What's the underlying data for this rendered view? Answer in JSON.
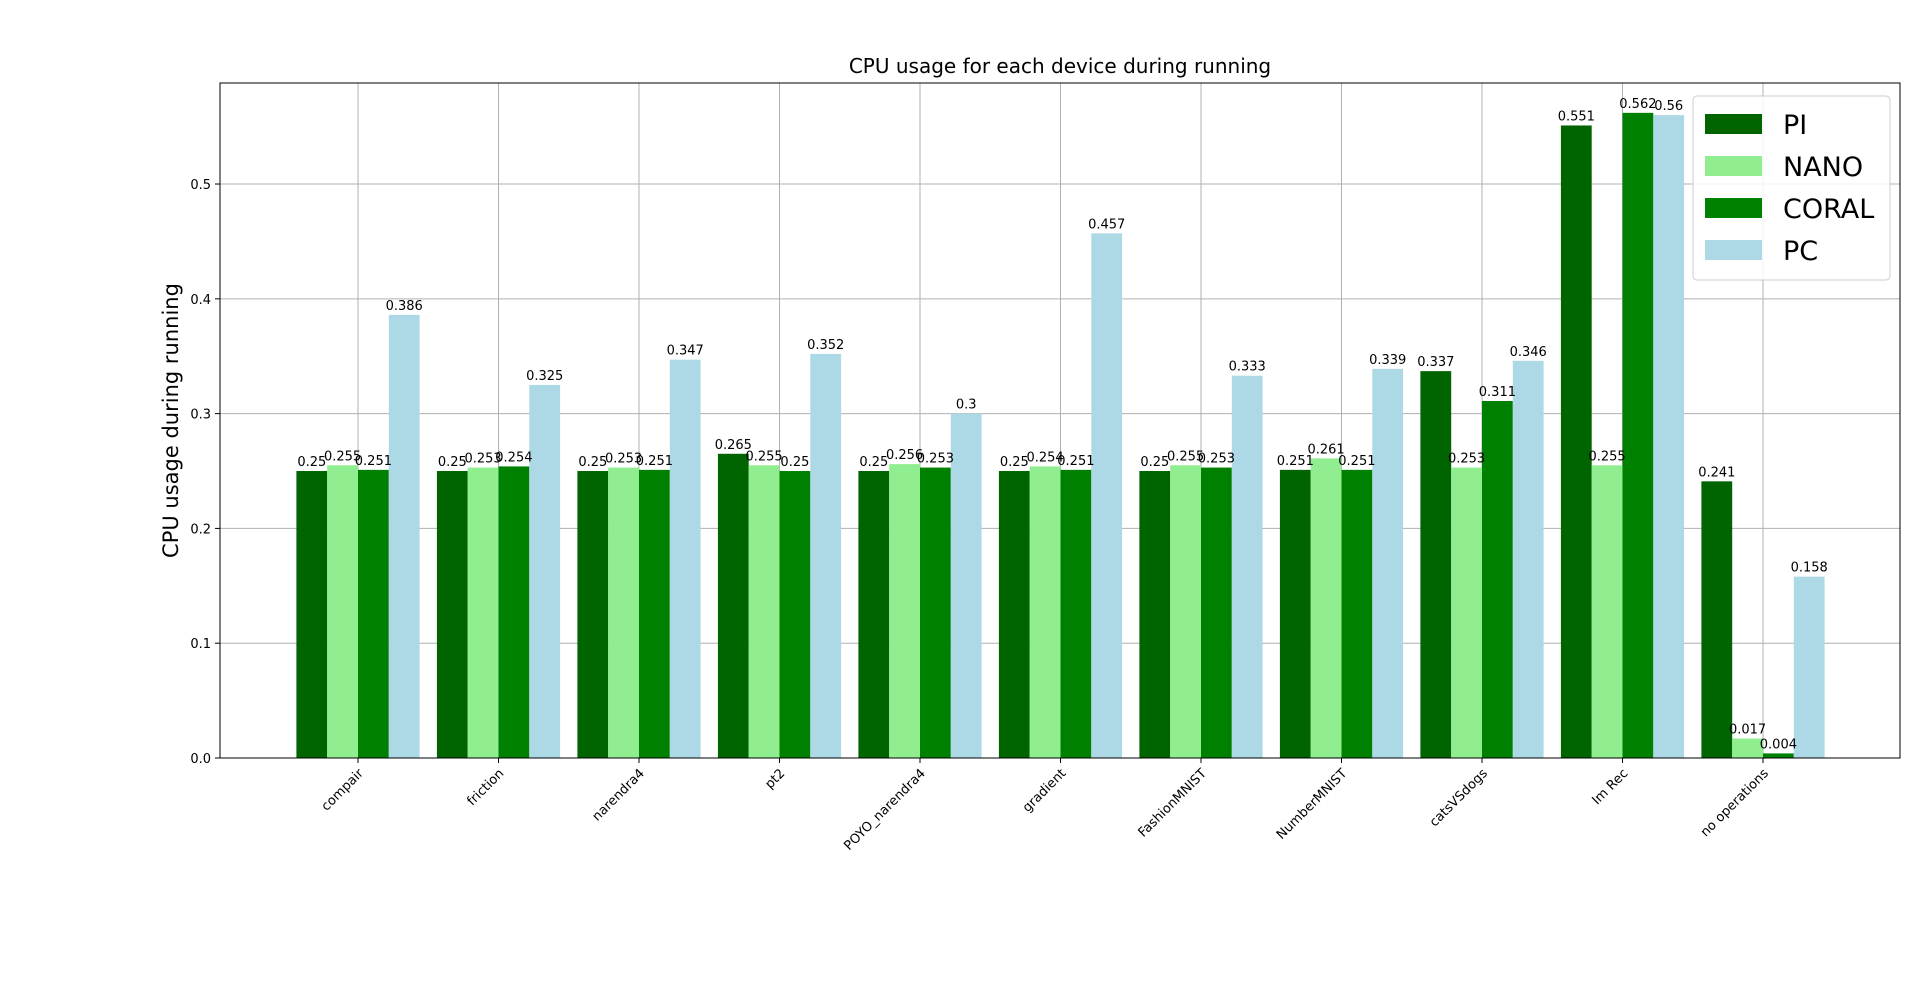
{
  "chart_data": {
    "type": "bar",
    "title": "CPU usage for each device during running",
    "xlabel": "",
    "ylabel": "CPU usage during running",
    "ylim": [
      0,
      0.588
    ],
    "yticks": [
      "0.0",
      "0.1",
      "0.2",
      "0.3",
      "0.4",
      "0.5"
    ],
    "grid": true,
    "legend_position": "top-right",
    "categories": [
      "compair",
      "friction",
      "narendra4",
      "pt2",
      "POYO_narendra4",
      "gradient",
      "FashionMNIST",
      "NumberMNIST",
      "catsVSdogs",
      "Im Rec",
      "no operations"
    ],
    "series": [
      {
        "name": "PI",
        "color": "#006400",
        "values": [
          0.25,
          0.25,
          0.25,
          0.265,
          0.25,
          0.25,
          0.25,
          0.251,
          0.337,
          0.551,
          0.241
        ],
        "labels": [
          "0.25",
          "0.25",
          "0.25",
          "0.265",
          "0.25",
          "0.25",
          "0.25",
          "0.251",
          "0.337",
          "0.551",
          "0.241"
        ]
      },
      {
        "name": "NANO",
        "color": "#90ee90",
        "values": [
          0.255,
          0.253,
          0.253,
          0.255,
          0.256,
          0.254,
          0.255,
          0.261,
          0.253,
          0.255,
          0.017
        ],
        "labels": [
          "0.255",
          "0.253",
          "0.253",
          "0.255",
          "0.256",
          "0.254",
          "0.255",
          "0.261",
          "0.253",
          "0.255",
          "0.017"
        ]
      },
      {
        "name": "CORAL",
        "color": "#008000",
        "values": [
          0.251,
          0.254,
          0.251,
          0.25,
          0.253,
          0.251,
          0.253,
          0.251,
          0.311,
          0.562,
          0.004
        ],
        "labels": [
          "0.251",
          "0.254",
          "0.251",
          "0.25",
          "0.253",
          "0.251",
          "0.253",
          "0.251",
          "0.311",
          "0.562",
          "0.004"
        ]
      },
      {
        "name": "PC",
        "color": "#add8e6",
        "values": [
          0.386,
          0.325,
          0.347,
          0.352,
          0.3,
          0.457,
          0.333,
          0.339,
          0.346,
          0.56,
          0.158
        ],
        "labels": [
          "0.386",
          "0.325",
          "0.347",
          "0.352",
          "0.3",
          "0.457",
          "0.333",
          "0.339",
          "0.346",
          "0.56",
          "0.158"
        ]
      }
    ]
  }
}
